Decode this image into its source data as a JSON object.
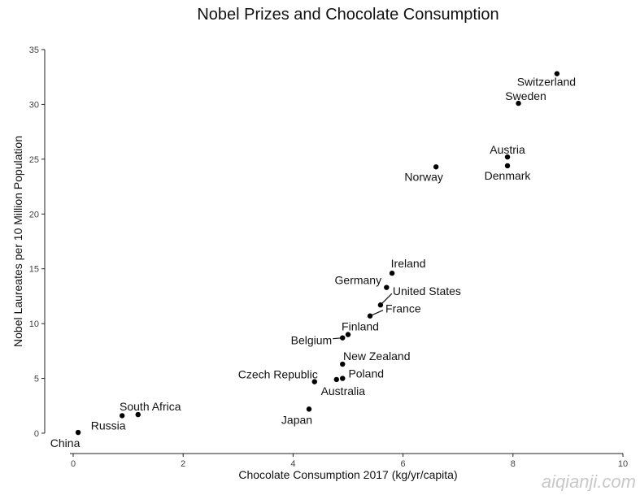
{
  "chart_data": {
    "type": "scatter",
    "title": "Nobel Prizes and Chocolate Consumption",
    "xlabel": "Chocolate Consumption 2017 (kg/yr/capita)",
    "ylabel": "Nobel Laureates per 10 Million Population",
    "xlim": [
      0,
      10
    ],
    "ylim": [
      0,
      35
    ],
    "xticks": [
      0,
      2,
      4,
      6,
      8,
      10
    ],
    "yticks": [
      0,
      5,
      10,
      15,
      20,
      25,
      30,
      35
    ],
    "grid": false,
    "points": [
      {
        "label": "China",
        "x": 0.09,
        "y": 0.07
      },
      {
        "label": "Russia",
        "x": 0.89,
        "y": 1.6
      },
      {
        "label": "South Africa",
        "x": 1.18,
        "y": 1.7
      },
      {
        "label": "Japan",
        "x": 4.29,
        "y": 2.2
      },
      {
        "label": "Czech Republic",
        "x": 4.39,
        "y": 4.7
      },
      {
        "label": "Australia",
        "x": 4.79,
        "y": 4.9
      },
      {
        "label": "Poland",
        "x": 4.9,
        "y": 5.0
      },
      {
        "label": "New Zealand",
        "x": 4.9,
        "y": 6.3
      },
      {
        "label": "Belgium",
        "x": 4.9,
        "y": 8.7
      },
      {
        "label": "Finland",
        "x": 5.0,
        "y": 9.0
      },
      {
        "label": "France",
        "x": 5.4,
        "y": 10.7
      },
      {
        "label": "United States",
        "x": 5.59,
        "y": 11.7
      },
      {
        "label": "Germany",
        "x": 5.7,
        "y": 13.3
      },
      {
        "label": "Ireland",
        "x": 5.8,
        "y": 14.6
      },
      {
        "label": "Norway",
        "x": 6.6,
        "y": 24.3
      },
      {
        "label": "Austria",
        "x": 7.9,
        "y": 25.2
      },
      {
        "label": "Denmark",
        "x": 7.9,
        "y": 24.4
      },
      {
        "label": "Sweden",
        "x": 8.1,
        "y": 30.1
      },
      {
        "label": "Switzerland",
        "x": 8.8,
        "y": 32.8
      }
    ]
  },
  "watermark": "aiqianji.com"
}
